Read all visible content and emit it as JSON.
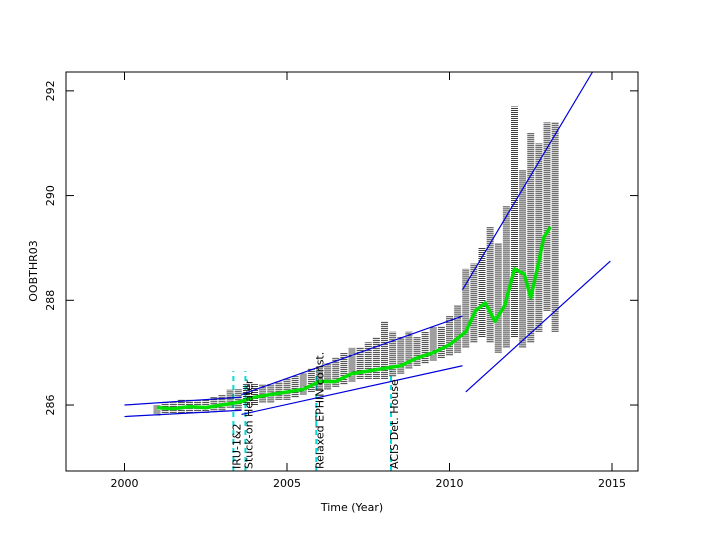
{
  "chart_data": {
    "type": "line",
    "ylabel": "OOBTHR03",
    "xlabel": "Time (Year)",
    "xlim": [
      1998.2,
      2015.8
    ],
    "ylim": [
      284.74,
      292.36
    ],
    "xticks": [
      2000,
      2005,
      2010,
      2015
    ],
    "yticks": [
      286,
      288,
      290,
      292
    ],
    "ranges": {
      "color": "#000000",
      "x": [
        2001.0,
        2001.25,
        2001.5,
        2001.75,
        2002.0,
        2002.25,
        2002.5,
        2002.75,
        2003.0,
        2003.25,
        2003.5,
        2003.75,
        2004.0,
        2004.25,
        2004.5,
        2004.75,
        2005.0,
        2005.25,
        2005.5,
        2005.75,
        2006.0,
        2006.25,
        2006.5,
        2006.75,
        2007.0,
        2007.25,
        2007.5,
        2007.75,
        2008.0,
        2008.25,
        2008.5,
        2008.75,
        2009.0,
        2009.25,
        2009.5,
        2009.75,
        2010.0,
        2010.25,
        2010.5,
        2010.75,
        2011.0,
        2011.25,
        2011.5,
        2011.75,
        2012.0,
        2012.25,
        2012.5,
        2012.75,
        2013.0,
        2013.25
      ],
      "low": [
        285.8,
        285.85,
        285.85,
        285.85,
        285.85,
        285.85,
        285.85,
        285.9,
        285.9,
        285.95,
        285.9,
        286.0,
        286.0,
        286.05,
        286.05,
        286.1,
        286.1,
        286.15,
        286.2,
        286.25,
        286.3,
        286.3,
        286.35,
        286.4,
        286.45,
        286.5,
        286.5,
        286.5,
        286.5,
        286.55,
        286.6,
        286.7,
        286.75,
        286.8,
        286.85,
        286.9,
        286.95,
        287.0,
        287.1,
        287.2,
        287.3,
        287.2,
        287.0,
        287.1,
        287.3,
        287.1,
        287.2,
        287.4,
        287.8,
        287.4
      ],
      "high": [
        286.0,
        286.05,
        286.05,
        286.1,
        286.1,
        286.1,
        286.1,
        286.15,
        286.2,
        286.3,
        286.3,
        286.4,
        286.4,
        286.4,
        286.4,
        286.45,
        286.5,
        286.55,
        286.6,
        286.7,
        286.75,
        286.8,
        286.9,
        287.0,
        287.1,
        287.1,
        287.2,
        287.3,
        287.6,
        287.4,
        287.3,
        287.4,
        287.3,
        287.4,
        287.5,
        287.5,
        287.7,
        287.9,
        288.6,
        288.7,
        289.0,
        289.4,
        289.1,
        289.8,
        291.7,
        290.5,
        291.2,
        291.0,
        291.4,
        291.4
      ]
    },
    "trend": {
      "color": "#00e000",
      "x": [
        2001.0,
        2001.5,
        2002.0,
        2002.5,
        2003.0,
        2003.5,
        2004.0,
        2004.5,
        2005.0,
        2005.5,
        2006.0,
        2006.5,
        2007.0,
        2007.5,
        2008.0,
        2008.5,
        2009.0,
        2009.5,
        2010.0,
        2010.5,
        2010.8,
        2011.1,
        2011.4,
        2011.7,
        2012.0,
        2012.3,
        2012.5,
        2012.7,
        2012.9,
        2013.1
      ],
      "values": [
        285.95,
        285.93,
        285.97,
        285.95,
        286.0,
        286.05,
        286.15,
        286.2,
        286.25,
        286.3,
        286.45,
        286.45,
        286.6,
        286.65,
        286.7,
        286.75,
        286.9,
        287.0,
        287.15,
        287.4,
        287.8,
        287.95,
        287.6,
        287.9,
        288.6,
        288.5,
        288.05,
        288.6,
        289.2,
        289.4
      ]
    },
    "envelope_color": "#0000dd",
    "envelopes": [
      {
        "x": [
          2000,
          2003.6
        ],
        "y": [
          286.0,
          286.15
        ]
      },
      {
        "x": [
          2000,
          2003.6
        ],
        "y": [
          285.78,
          285.9
        ]
      },
      {
        "x": [
          2003.6,
          2010.4
        ],
        "y": [
          286.2,
          287.7
        ]
      },
      {
        "x": [
          2003.6,
          2010.4
        ],
        "y": [
          285.82,
          286.75
        ]
      },
      {
        "x": [
          2010.4,
          2014.4
        ],
        "y": [
          288.2,
          292.36
        ]
      },
      {
        "x": [
          2010.5,
          2014.95
        ],
        "y": [
          286.25,
          288.75
        ]
      }
    ],
    "event_color": "#00dddd",
    "events": [
      {
        "x": 2003.35,
        "label": "IRU-1&2"
      },
      {
        "x": 2003.72,
        "label": "Stuck-on Heater"
      },
      {
        "x": 2005.9,
        "label": "Relaxed EPHIN const."
      },
      {
        "x": 2008.2,
        "label": "ACIS Det. House"
      }
    ]
  }
}
